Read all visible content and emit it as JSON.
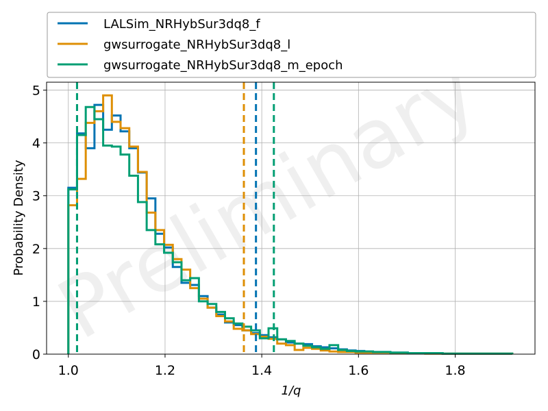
{
  "chart_data": {
    "type": "line",
    "xlabel": "1/q",
    "ylabel": "Probability Density",
    "xlim": [
      0.955,
      1.965
    ],
    "ylim": [
      0,
      5.15
    ],
    "xticks": [
      1.0,
      1.2,
      1.4,
      1.6,
      1.8
    ],
    "xtick_labels": [
      "1.0",
      "1.2",
      "1.4",
      "1.6",
      "1.8"
    ],
    "yticks": [
      0,
      1,
      2,
      3,
      4,
      5
    ],
    "ytick_labels": [
      "0",
      "1",
      "2",
      "3",
      "4",
      "5"
    ],
    "grid": true,
    "legend_position": "top",
    "watermark": "Preliminary",
    "bin_edges": [
      1.0,
      1.018,
      1.036,
      1.054,
      1.072,
      1.09,
      1.108,
      1.126,
      1.144,
      1.162,
      1.18,
      1.198,
      1.216,
      1.234,
      1.252,
      1.27,
      1.288,
      1.306,
      1.324,
      1.342,
      1.36,
      1.378,
      1.396,
      1.414,
      1.432,
      1.45,
      1.468,
      1.486,
      1.504,
      1.522,
      1.54,
      1.558,
      1.576,
      1.594,
      1.612,
      1.63,
      1.648,
      1.666,
      1.684,
      1.702,
      1.72,
      1.738,
      1.756,
      1.774,
      1.792,
      1.81,
      1.828,
      1.846,
      1.864,
      1.882,
      1.9,
      1.918
    ],
    "series": [
      {
        "name": "LALSim_NRHybSur3dq8_f",
        "color": "#0173B2",
        "median_line": 1.388,
        "values": [
          3.15,
          4.18,
          3.9,
          4.72,
          4.25,
          4.52,
          4.22,
          3.9,
          3.44,
          2.95,
          2.28,
          2.02,
          1.65,
          1.35,
          1.31,
          1.1,
          0.88,
          0.75,
          0.6,
          0.55,
          0.45,
          0.4,
          0.36,
          0.32,
          0.28,
          0.22,
          0.2,
          0.19,
          0.15,
          0.13,
          0.11,
          0.09,
          0.07,
          0.06,
          0.05,
          0.04,
          0.04,
          0.03,
          0.03,
          0.02,
          0.02,
          0.02,
          0.02,
          0.01,
          0.01,
          0.01,
          0.01,
          0.01,
          0.01,
          0.01,
          0.01
        ]
      },
      {
        "name": "gwsurrogate_NRHybSur3dq8_l",
        "color": "#DE8F05",
        "median_line": 1.363,
        "values": [
          2.82,
          3.32,
          4.38,
          4.6,
          4.9,
          4.4,
          4.28,
          3.93,
          3.45,
          2.68,
          2.35,
          2.07,
          1.8,
          1.6,
          1.25,
          1.05,
          0.88,
          0.72,
          0.62,
          0.48,
          0.45,
          0.38,
          0.33,
          0.29,
          0.2,
          0.17,
          0.08,
          0.12,
          0.1,
          0.07,
          0.05,
          0.04,
          0.04,
          0.03,
          0.03,
          0.03,
          0.03,
          0.02,
          0.02,
          0.02,
          0.02,
          0.01,
          0.01,
          0.01,
          0.01,
          0.01,
          0.01,
          0.01,
          0.01,
          0.01,
          0.01
        ]
      },
      {
        "name": "gwsurrogate_NRHybSur3dq8_m_epoch",
        "color": "#029E73",
        "median_line": 1.425,
        "values": [
          3.12,
          4.15,
          4.68,
          4.45,
          3.95,
          3.93,
          3.78,
          3.38,
          2.88,
          2.35,
          2.08,
          1.92,
          1.74,
          1.4,
          1.44,
          1.0,
          0.95,
          0.8,
          0.68,
          0.58,
          0.52,
          0.45,
          0.3,
          0.49,
          0.28,
          0.25,
          0.2,
          0.16,
          0.13,
          0.1,
          0.17,
          0.08,
          0.06,
          0.05,
          0.05,
          0.04,
          0.04,
          0.03,
          0.03,
          0.02,
          0.02,
          0.02,
          0.02,
          0.01,
          0.01,
          0.01,
          0.01,
          0.01,
          0.01,
          0.01,
          0.01
        ]
      }
    ]
  }
}
